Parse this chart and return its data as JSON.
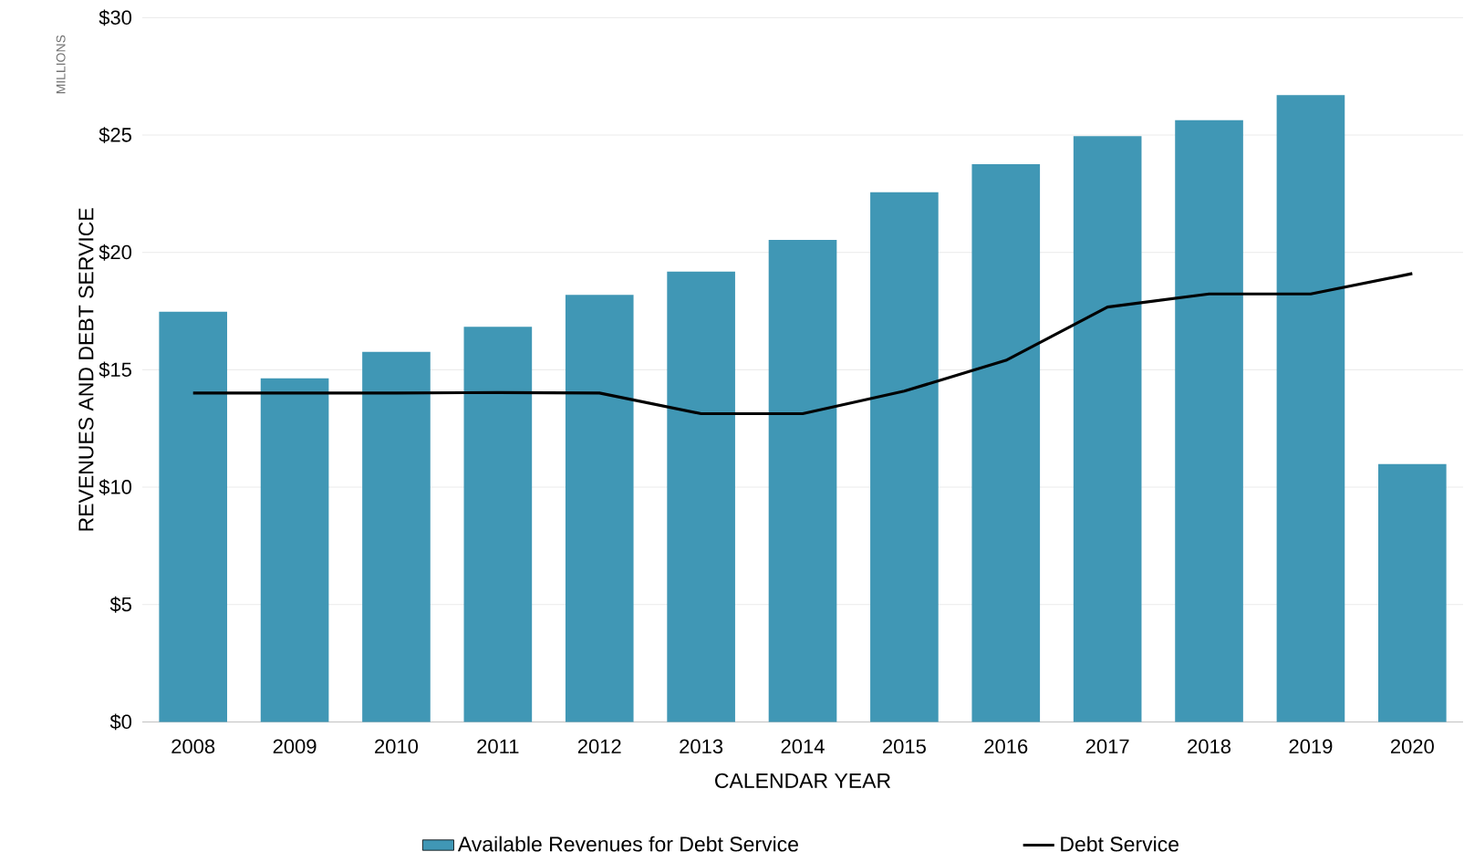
{
  "chart_data": {
    "type": "bar",
    "xlabel": "CALENDAR YEAR",
    "ylabel": "REVENUES AND DEBT SERVICE",
    "annotations": [
      "MILLIONS"
    ],
    "categories": [
      "2008",
      "2009",
      "2010",
      "2011",
      "2012",
      "2013",
      "2014",
      "2015",
      "2016",
      "2017",
      "2018",
      "2019",
      "2020"
    ],
    "series": [
      {
        "name": "Available Revenues for Debt Service",
        "type": "bar",
        "color": "#4097b5",
        "values": [
          17.47,
          14.64,
          15.76,
          16.83,
          18.19,
          19.18,
          20.53,
          22.56,
          23.76,
          24.95,
          25.63,
          26.7,
          10.98
        ]
      },
      {
        "name": "Debt Service",
        "type": "line",
        "color": "#000000",
        "values": [
          14.01,
          14.01,
          14.01,
          14.03,
          14.01,
          13.13,
          13.13,
          14.09,
          15.4,
          17.67,
          18.23,
          18.23,
          19.1
        ]
      }
    ],
    "ylim": [
      0,
      30
    ],
    "yticks": [
      {
        "value": 0,
        "label": "$0"
      },
      {
        "value": 5,
        "label": "$5"
      },
      {
        "value": 10,
        "label": "$10"
      },
      {
        "value": 15,
        "label": "$15"
      },
      {
        "value": 20,
        "label": "$20"
      },
      {
        "value": 25,
        "label": "$25"
      },
      {
        "value": 30,
        "label": "$30"
      }
    ],
    "grid": "y",
    "legend": "bottom"
  }
}
